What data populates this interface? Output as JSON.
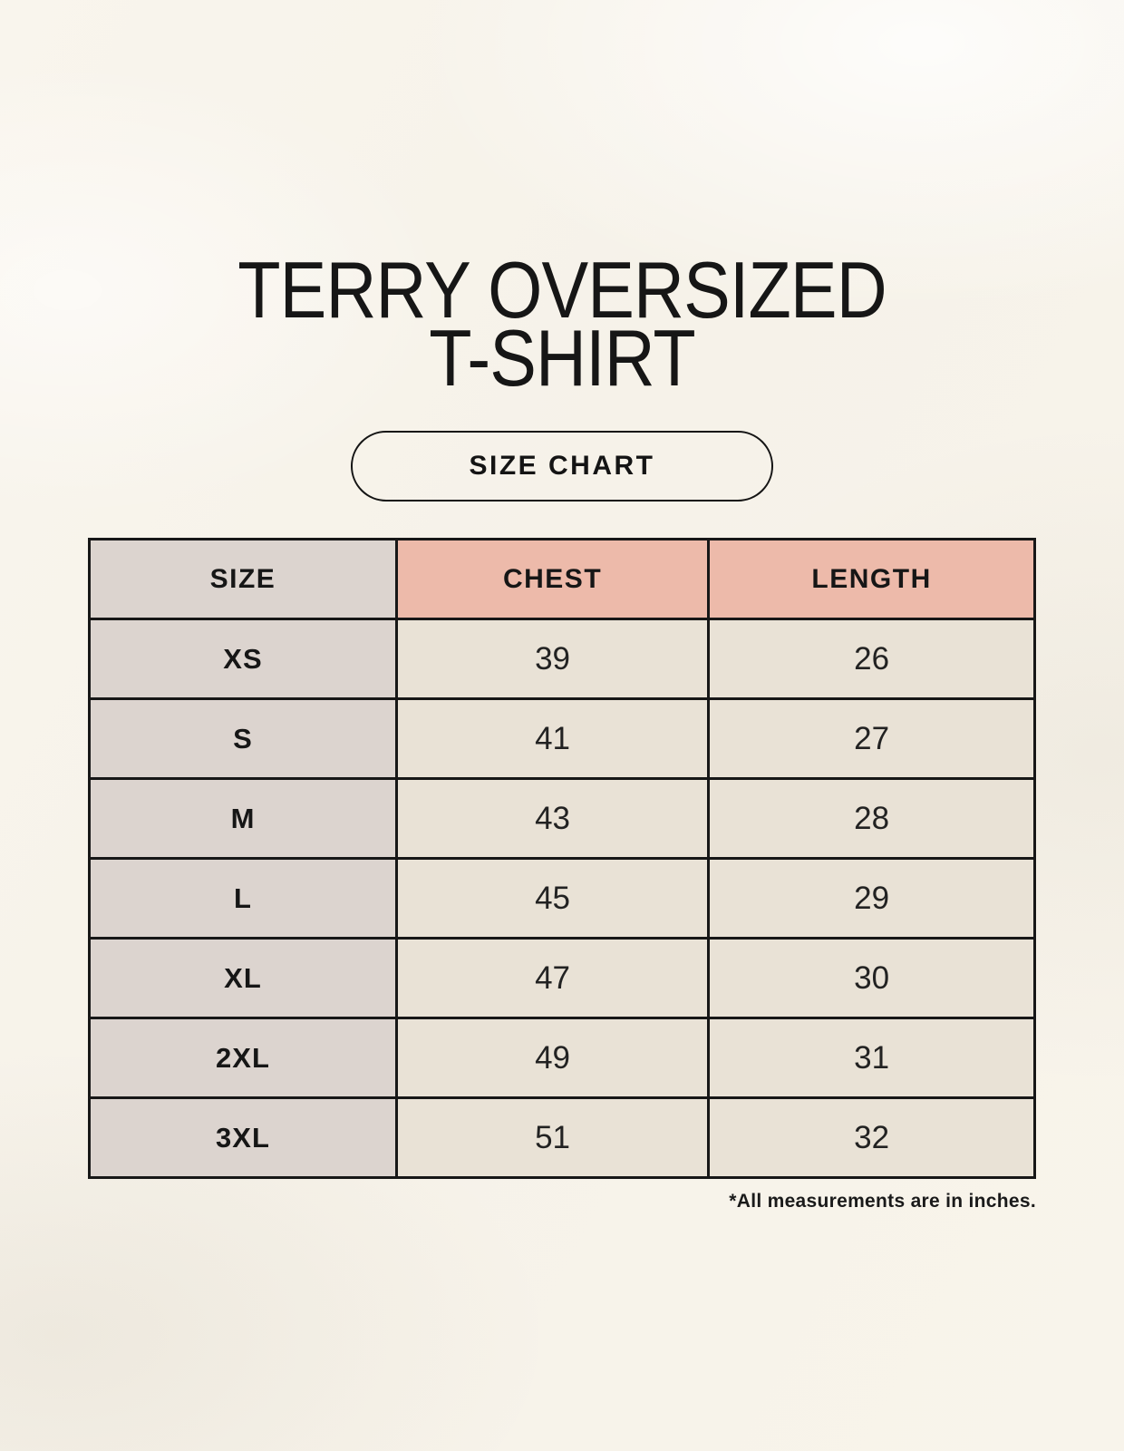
{
  "title": {
    "line1": "TERRY OVERSIZED",
    "line2": "T-SHIRT"
  },
  "button": {
    "label": "SIZE CHART"
  },
  "table": {
    "headers": [
      "SIZE",
      "CHEST",
      "LENGTH"
    ],
    "rows": [
      [
        "XS",
        "39",
        "26"
      ],
      [
        "S",
        "41",
        "27"
      ],
      [
        "M",
        "43",
        "28"
      ],
      [
        "L",
        "45",
        "29"
      ],
      [
        "XL",
        "47",
        "30"
      ],
      [
        "2XL",
        "49",
        "31"
      ],
      [
        "3XL",
        "51",
        "32"
      ]
    ]
  },
  "footnote": "*All measurements are in inches.",
  "colors": {
    "background": "#f7f3ea",
    "header_accent_pink": "#edbaaa",
    "size_column_taupe": "#dcd4cf",
    "data_cell_cream": "#e9e2d6",
    "border": "#171717",
    "text": "#1a1a1a"
  },
  "chart_data": {
    "type": "table",
    "title": "TERRY OVERSIZED T-SHIRT",
    "columns": [
      "SIZE",
      "CHEST",
      "LENGTH"
    ],
    "rows": [
      [
        "XS",
        39,
        26
      ],
      [
        "S",
        41,
        27
      ],
      [
        "M",
        43,
        28
      ],
      [
        "L",
        45,
        29
      ],
      [
        "XL",
        47,
        30
      ],
      [
        "2XL",
        49,
        31
      ],
      [
        "3XL",
        51,
        32
      ]
    ],
    "units": "inches",
    "note": "*All measurements are in inches."
  }
}
